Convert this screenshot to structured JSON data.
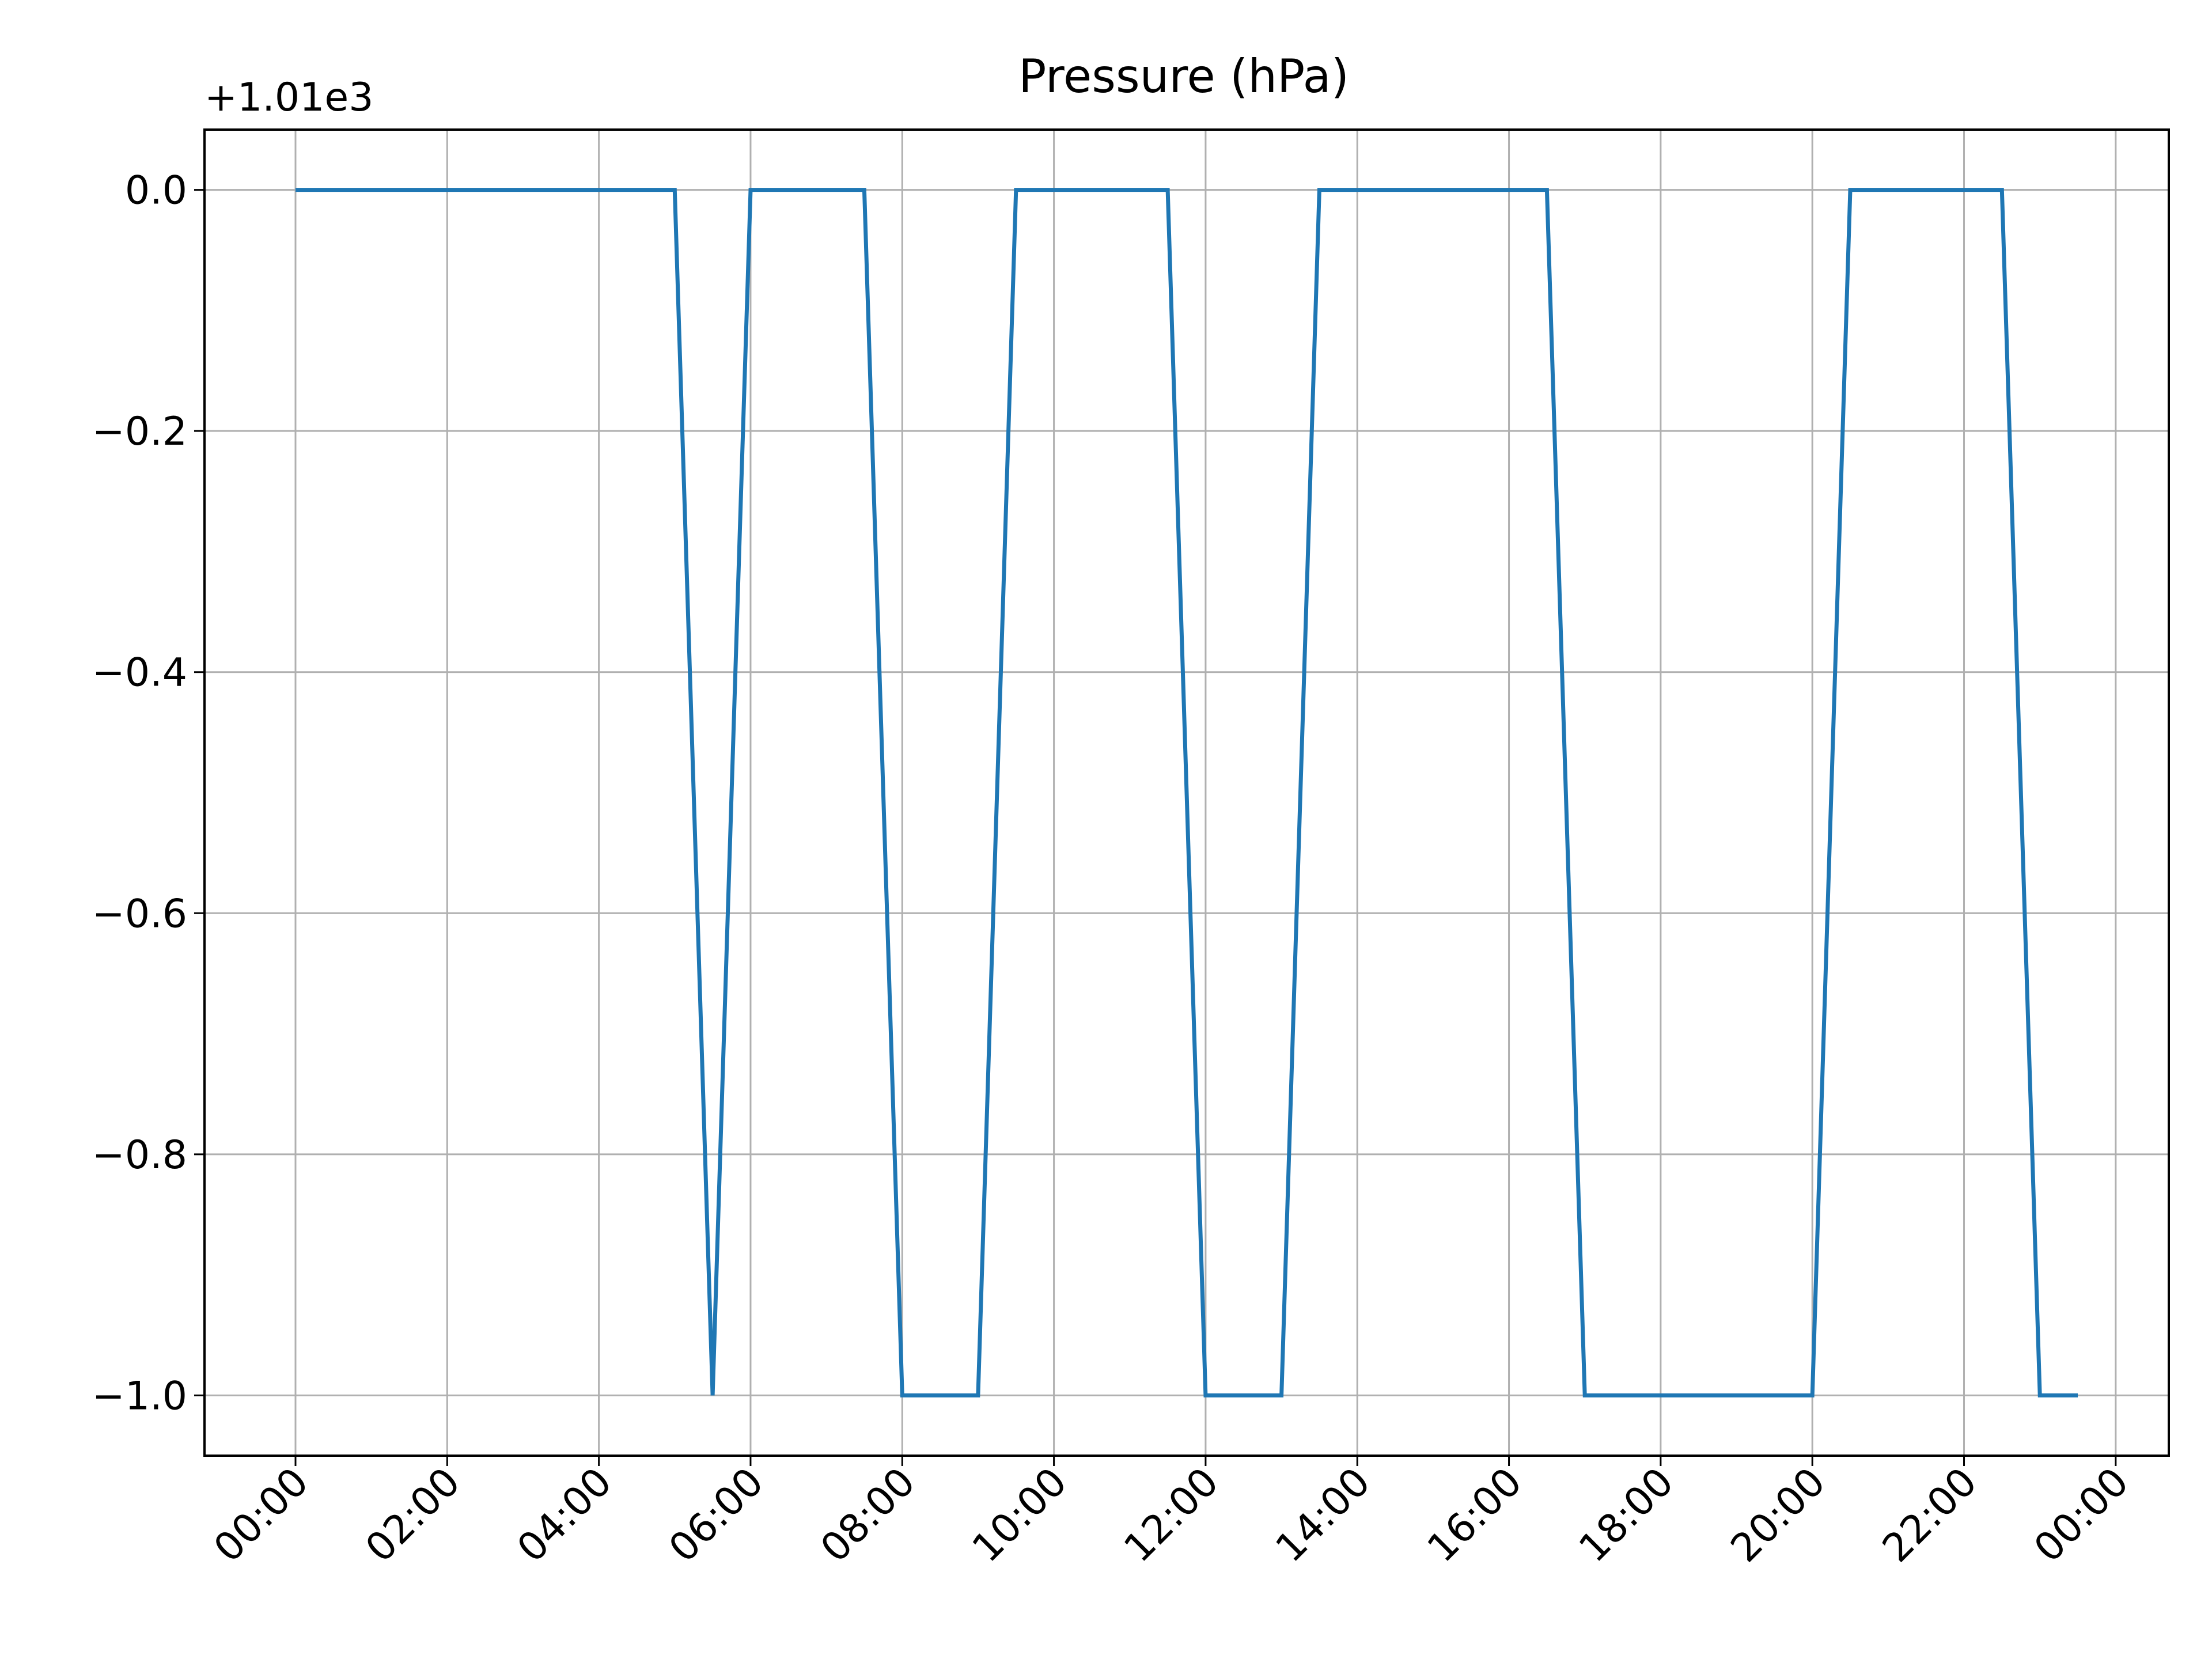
{
  "chart_data": {
    "type": "line",
    "title": "Pressure (hPa)",
    "xlabel": "",
    "ylabel": "",
    "y_offset_label": "+1.01e3",
    "y_offset": 1010,
    "x_unit": "time of day (hours)",
    "xlim": [
      -1.2,
      24.7
    ],
    "ylim": [
      -1.05,
      0.05
    ],
    "grid": true,
    "x_ticks": [
      0,
      2,
      4,
      6,
      8,
      10,
      12,
      14,
      16,
      18,
      20,
      22,
      24
    ],
    "x_tick_labels": [
      "00:00",
      "02:00",
      "04:00",
      "06:00",
      "08:00",
      "10:00",
      "12:00",
      "14:00",
      "16:00",
      "18:00",
      "20:00",
      "22:00",
      "00:00"
    ],
    "y_ticks": [
      0.0,
      -0.2,
      -0.4,
      -0.6,
      -0.8,
      -1.0
    ],
    "y_tick_labels": [
      "0.0",
      "−0.2",
      "−0.4",
      "−0.6",
      "−0.8",
      "−1.0"
    ],
    "series": [
      {
        "name": "",
        "color": "#1f77b4",
        "x": [
          0,
          0.5,
          1,
          1.5,
          2,
          2.5,
          3,
          3.5,
          4,
          4.5,
          5,
          5.5,
          6,
          6.5,
          7,
          7.5,
          8,
          8.5,
          9,
          9.5,
          10,
          10.5,
          11,
          11.5,
          12,
          12.5,
          13,
          13.5,
          14,
          14.5,
          15,
          15.5,
          16,
          16.5,
          17,
          17.5,
          18,
          18.5,
          19,
          19.5,
          20,
          20.5,
          21,
          21.5,
          22,
          22.5,
          23,
          23.5
        ],
        "values": [
          0,
          0,
          0,
          0,
          0,
          0,
          0,
          0,
          0,
          0,
          0,
          -1,
          0,
          0,
          0,
          0,
          -1,
          -1,
          -1,
          0,
          0,
          0,
          0,
          0,
          -1,
          -1,
          -1,
          0,
          0,
          0,
          0,
          0,
          0,
          0,
          -1,
          -1,
          -1,
          -1,
          -1,
          -1,
          -1,
          0,
          0,
          0,
          0,
          0,
          -1,
          -1
        ]
      }
    ]
  }
}
